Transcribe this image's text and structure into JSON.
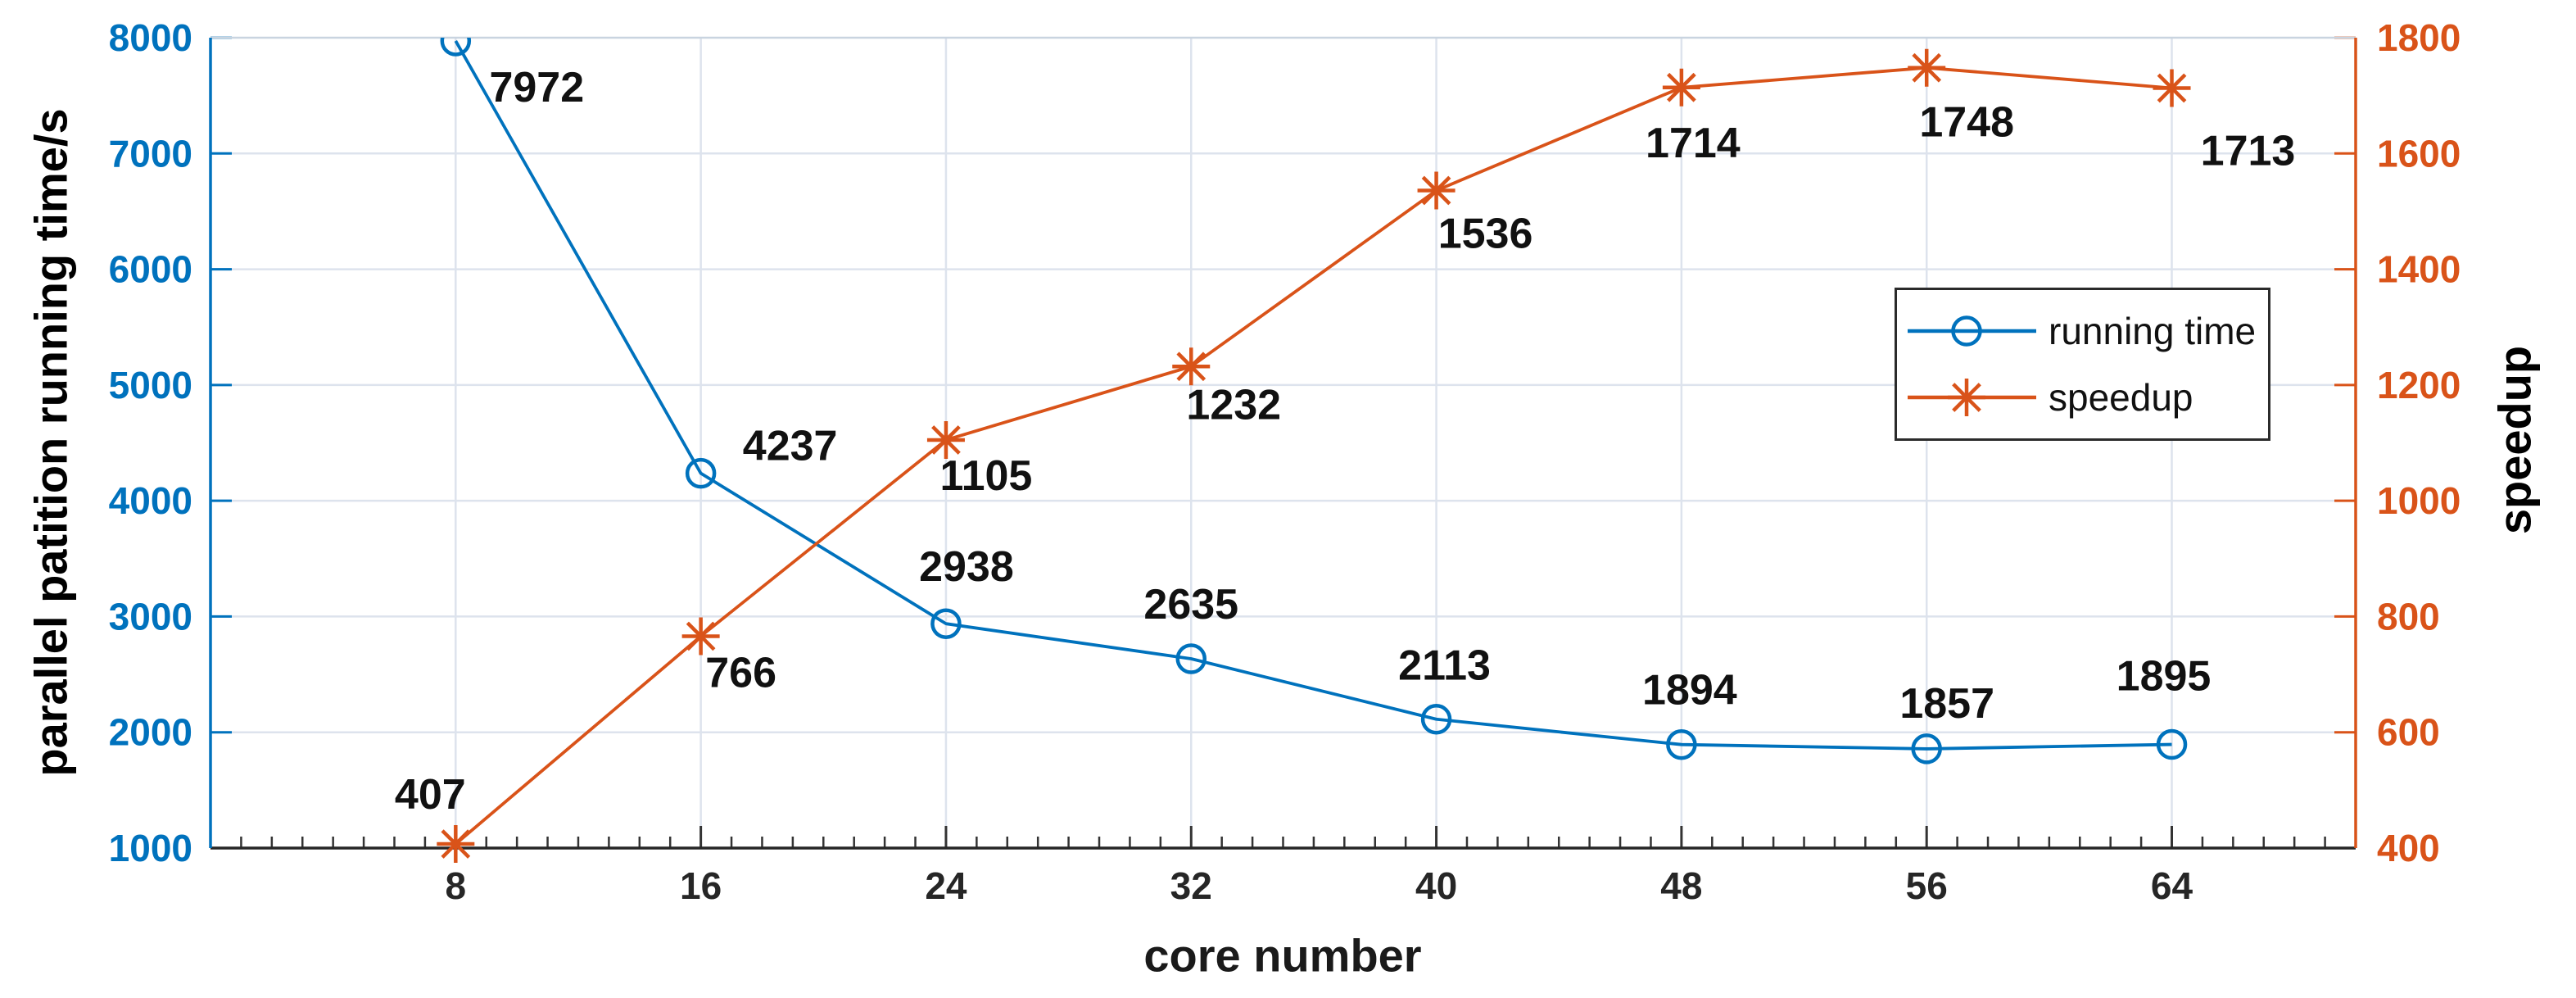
{
  "chart_data": {
    "type": "line",
    "title": "",
    "xlabel": "core number",
    "ylabel_left": "parallel patition running time/s",
    "ylabel_right": "speedup",
    "x": [
      8,
      16,
      24,
      32,
      40,
      48,
      56,
      64
    ],
    "x_axis": {
      "min": 0,
      "max": 70,
      "minor_step": 1,
      "major_step": 8,
      "tick_labels": [
        "8",
        "16",
        "24",
        "32",
        "40",
        "48",
        "56",
        "64"
      ],
      "color": "#262626"
    },
    "left_axis": {
      "min": 1000,
      "max": 8000,
      "tick_step": 1000,
      "tick_labels": [
        "1000",
        "2000",
        "3000",
        "4000",
        "5000",
        "6000",
        "7000",
        "8000"
      ],
      "color": "#0072BD"
    },
    "right_axis": {
      "min": 400,
      "max": 1800,
      "tick_step": 200,
      "tick_labels": [
        "400",
        "600",
        "800",
        "1000",
        "1200",
        "1400",
        "1600",
        "1800"
      ],
      "color": "#D95319"
    },
    "series": [
      {
        "name": "running time",
        "axis": "left",
        "color": "#0072BD",
        "marker": "circle",
        "values": [
          7972,
          4237,
          2938,
          2635,
          2113,
          1894,
          1857,
          1895
        ],
        "point_labels": [
          "7972",
          "4237",
          "2938",
          "2635",
          "2113",
          "1894",
          "1857",
          "1895"
        ],
        "label_offsets": [
          [
            99,
            56
          ],
          [
            109,
            -34
          ],
          [
            25,
            -70
          ],
          [
            0,
            -67
          ],
          [
            10,
            -66
          ],
          [
            10,
            -67
          ],
          [
            25,
            -56
          ],
          [
            -10,
            -84
          ]
        ]
      },
      {
        "name": "speedup",
        "axis": "right",
        "color": "#D95319",
        "marker": "asterisk",
        "values": [
          407,
          766,
          1105,
          1232,
          1536,
          1714,
          1748,
          1713
        ],
        "point_labels": [
          "407",
          "766",
          "1105",
          "1232",
          "1536",
          "1714",
          "1748",
          "1713"
        ],
        "label_offsets": [
          [
            -31,
            -61
          ],
          [
            49,
            44
          ],
          [
            49,
            43
          ],
          [
            52,
            46
          ],
          [
            60,
            52
          ],
          [
            14,
            67
          ],
          [
            49,
            66
          ],
          [
            93,
            76
          ]
        ]
      }
    ],
    "grid": true,
    "legend": {
      "position": "upper right",
      "items": [
        "running time",
        "speedup"
      ]
    },
    "label_color": "#111111",
    "grid_color": "#dde3ed"
  }
}
